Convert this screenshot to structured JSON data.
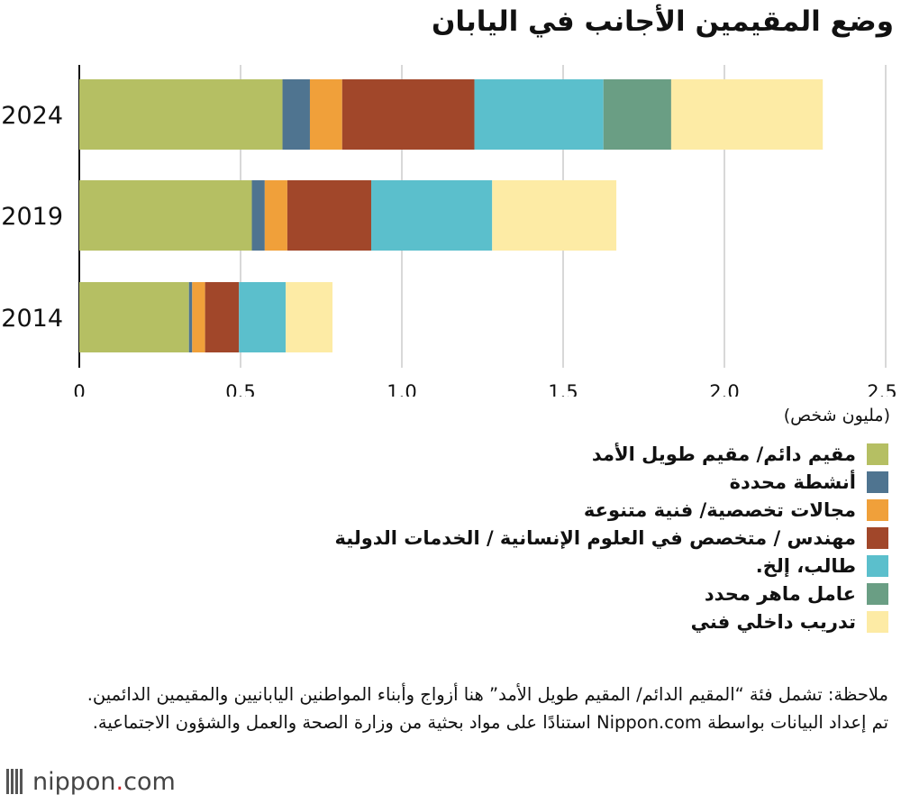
{
  "title": "وضع المقيمين الأجانب في اليابان",
  "unit_label": "(مليون شخص)",
  "chart_data": {
    "type": "bar",
    "orientation": "horizontal",
    "stacked": true,
    "title": "وضع المقيمين الأجانب في اليابان",
    "xlabel": "(مليون شخص)",
    "xlim": [
      0,
      2.5
    ],
    "x_ticks": [
      0,
      0.5,
      1.0,
      1.5,
      2.0,
      2.5
    ],
    "x_tick_labels": [
      "0",
      "0.5",
      "1.0",
      "1.5",
      "2.0",
      "2.5"
    ],
    "grid": "vertical",
    "legend_position": "bottom",
    "categories": [
      "2024",
      "2019",
      "2014"
    ],
    "series": [
      {
        "name": "مقيم دائم/ مقيم طويل الأمد",
        "color": "#b5bf63",
        "values": [
          0.63,
          0.535,
          0.34
        ]
      },
      {
        "name": "أنشطة محددة",
        "color": "#4f7490",
        "values": [
          0.085,
          0.04,
          0.01
        ]
      },
      {
        "name": "مجالات تخصصية/ فنية متنوعة",
        "color": "#f0a03a",
        "values": [
          0.1,
          0.07,
          0.04
        ]
      },
      {
        "name": "مهندس / متخصص في العلوم الإنسانية / الخدمات الدولية",
        "color": "#a1472a",
        "values": [
          0.41,
          0.26,
          0.105
        ]
      },
      {
        "name": "طالب، إلخ.",
        "color": "#5bbfcc",
        "values": [
          0.4,
          0.375,
          0.145
        ]
      },
      {
        "name": "عامل ماهر محدد",
        "color": "#6a9e84",
        "values": [
          0.21,
          0,
          0
        ]
      },
      {
        "name": "تدريب داخلي فني",
        "color": "#fdeba5",
        "values": [
          0.47,
          0.385,
          0.145
        ]
      }
    ]
  },
  "notes": [
    "ملاحظة: تشمل فئة “المقيم الدائم/ المقيم طويل الأمد” هنا أزواج وأبناء المواطنين اليابانيين والمقيمين الدائمين.",
    "تم إعداد البيانات بواسطة Nippon.com استنادًا على مواد بحثية من وزارة الصحة والعمل والشؤون الاجتماعية."
  ],
  "logo": {
    "prefix": "nippon",
    "dot": ".",
    "suffix": "com"
  }
}
